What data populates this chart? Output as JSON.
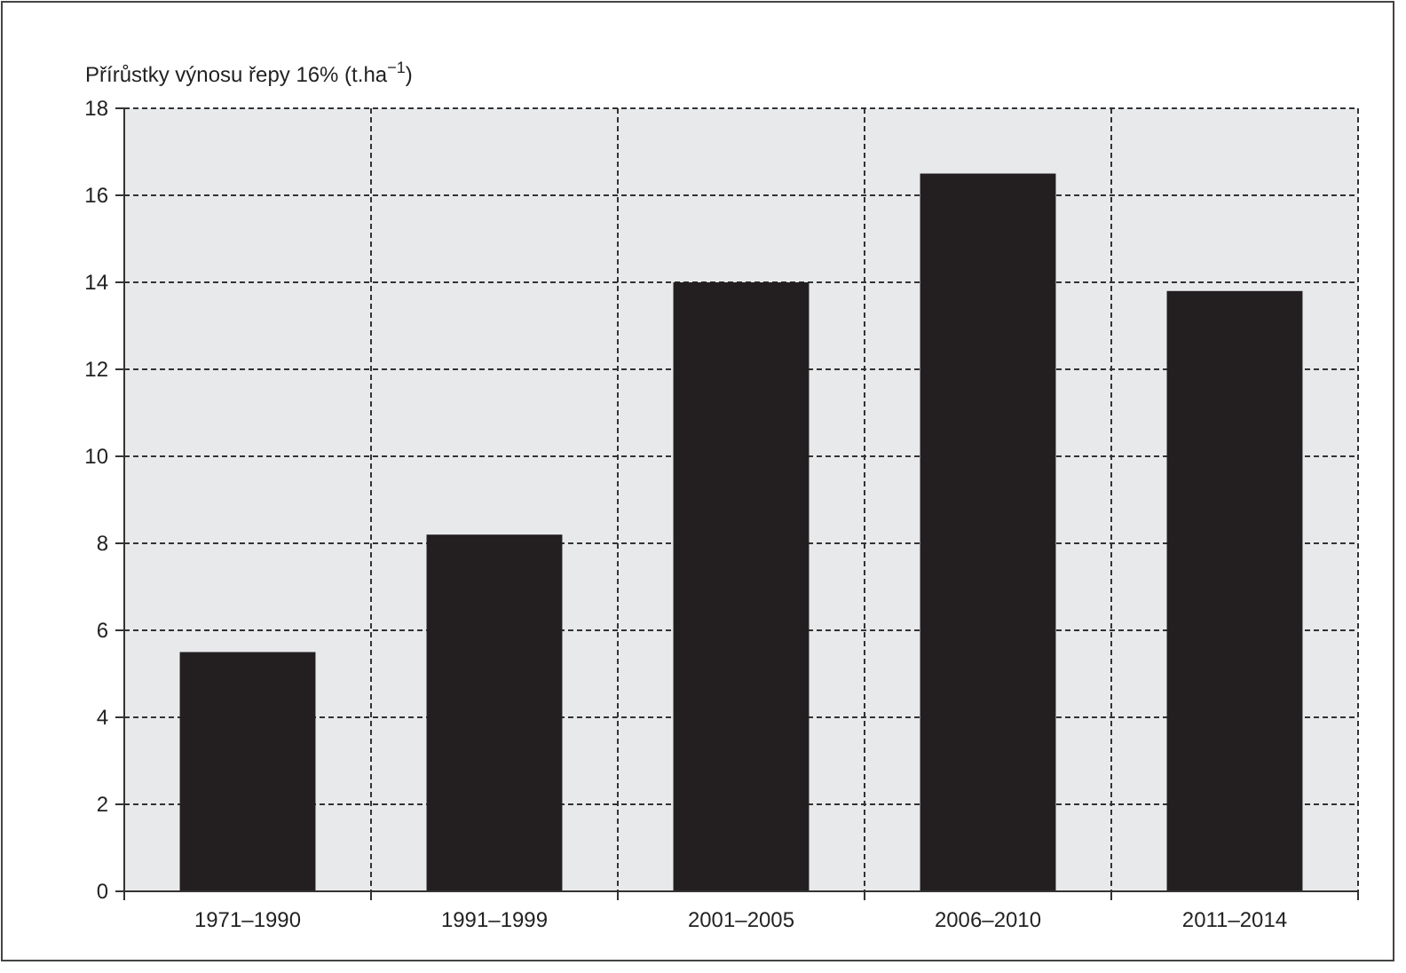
{
  "chart_data": {
    "type": "bar",
    "ylabel": "Přírůstky výnosu řepy 16% (t.ha$^{−1}$)",
    "categories": [
      "1971–1990",
      "1991–1999",
      "2001–2005",
      "2006–2010",
      "2011–2014"
    ],
    "values": [
      5.5,
      8.2,
      14.0,
      16.5,
      13.8
    ],
    "color": "#231f20",
    "ylim": [
      0,
      18
    ],
    "yticks": [
      0,
      2,
      4,
      6,
      8,
      10,
      12,
      14,
      16,
      18
    ],
    "grid": true
  }
}
